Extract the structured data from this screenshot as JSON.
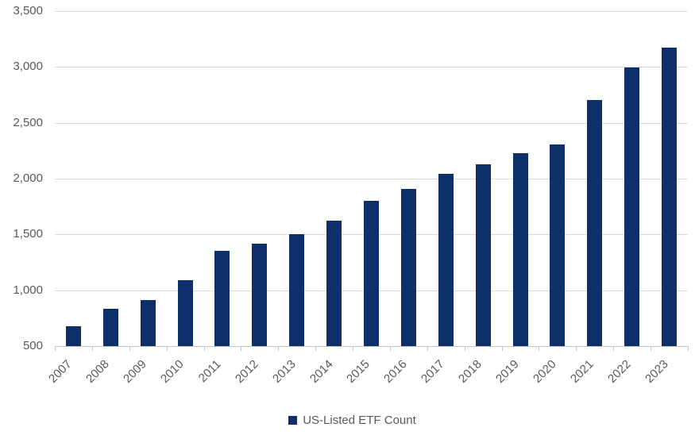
{
  "chart_data": {
    "type": "bar",
    "title": "",
    "series_name": "US-Listed ETF Count",
    "categories": [
      "2007",
      "2008",
      "2009",
      "2010",
      "2011",
      "2012",
      "2013",
      "2014",
      "2015",
      "2016",
      "2017",
      "2018",
      "2019",
      "2020",
      "2021",
      "2022",
      "2023"
    ],
    "values": [
      675,
      835,
      910,
      1090,
      1350,
      1420,
      1500,
      1625,
      1800,
      1905,
      2045,
      2125,
      2230,
      2305,
      2705,
      2995,
      3170
    ],
    "xlabel": "",
    "ylabel": "",
    "ylim": [
      500,
      3500
    ],
    "yticks": [
      {
        "value": 3500,
        "label": "3,500"
      },
      {
        "value": 3000,
        "label": "3,000"
      },
      {
        "value": 2500,
        "label": "2,500"
      },
      {
        "value": 2000,
        "label": "2,000"
      },
      {
        "value": 1500,
        "label": "1,500"
      },
      {
        "value": 1000,
        "label": "1,000"
      },
      {
        "value": 500,
        "label": "500"
      }
    ],
    "grid": "horizontal",
    "legend_position": "bottom-center",
    "bar_color": "#0e2f6a",
    "text_color": "#595959",
    "gridline_color": "#d9d9d9",
    "axis_color": "#c6c6c6"
  },
  "legend": {
    "marker_icon": "square-icon",
    "label": "US-Listed ETF Count"
  }
}
